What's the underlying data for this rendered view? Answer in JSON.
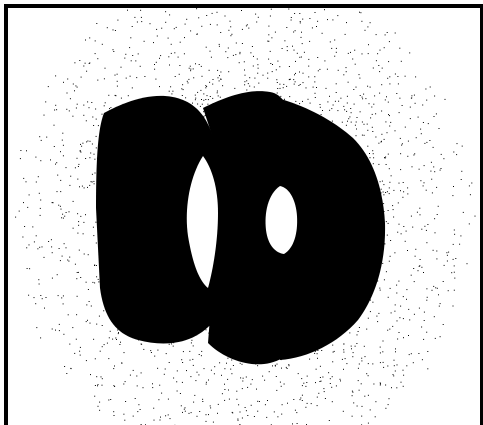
{
  "figure": {
    "description": "",
    "background_color": "#ffffff",
    "dot_color": "#000000"
  }
}
